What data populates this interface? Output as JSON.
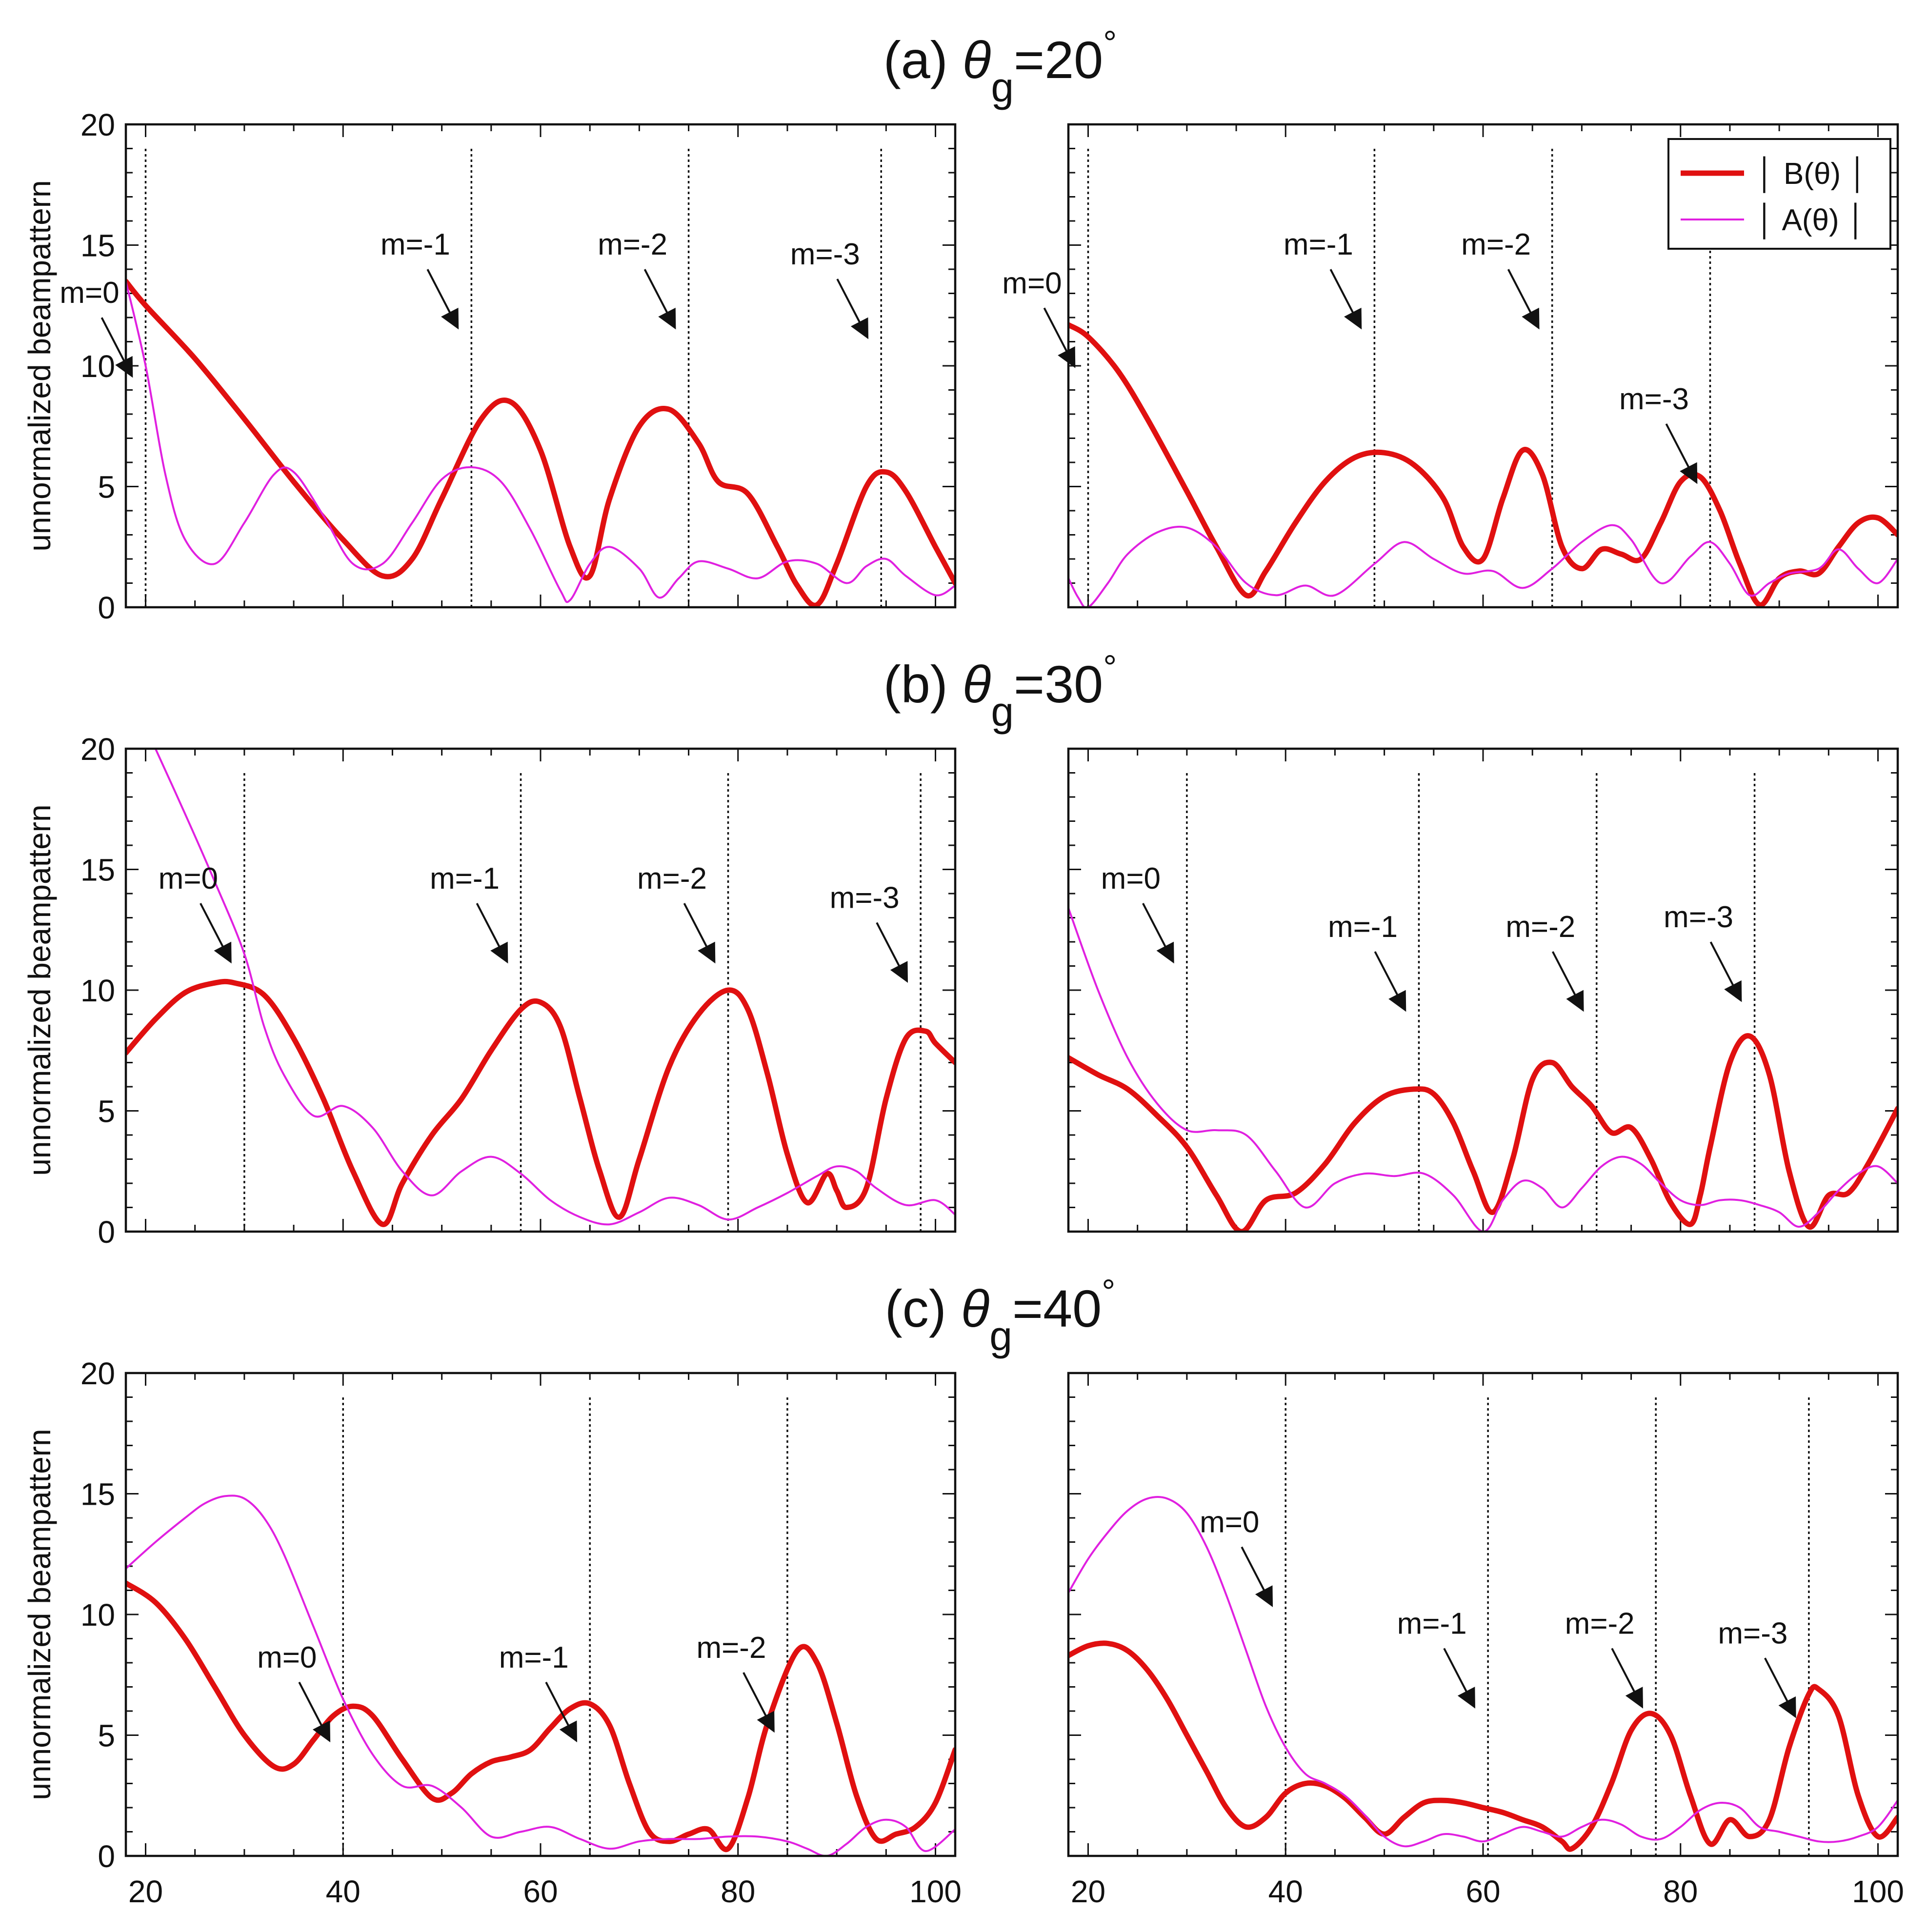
{
  "figure": {
    "ylabel": "unnormalized beampattern",
    "legend": {
      "B_label": "│ B(θ) │",
      "A_label": "│ A(θ) │",
      "B_color": "#e01010",
      "A_color": "#e020e0"
    },
    "x_tick_labels": [
      "20",
      "40",
      "60",
      "80",
      "100"
    ],
    "y_tick_labels": [
      "0",
      "5",
      "10",
      "15",
      "20"
    ]
  },
  "chart_data": [
    {
      "type": "line",
      "row": 0,
      "col": 0,
      "title_prefix": "(a) ",
      "title_theta": "θ",
      "title_sub": "g",
      "title_value": "=20",
      "title_degree": "°",
      "xlim": [
        18,
        102
      ],
      "ylim": [
        0,
        20
      ],
      "markers": [
        {
          "label": "m=0",
          "x": 20.0
        },
        {
          "label": "m=-1",
          "x": 53.0
        },
        {
          "label": "m=-2",
          "x": 75.0
        },
        {
          "label": "m=-3",
          "x": 94.5
        }
      ],
      "series": [
        {
          "name": "│ B(θ) │",
          "x": [
            18,
            20,
            25,
            30,
            35,
            40,
            44,
            47,
            50,
            54,
            57,
            60,
            63,
            65,
            67,
            70,
            73,
            76,
            78,
            81,
            84,
            86,
            88,
            90,
            93,
            95,
            97,
            100,
            102
          ],
          "y": [
            13.5,
            12.5,
            10.3,
            7.8,
            5.2,
            2.8,
            1.3,
            2.0,
            4.5,
            7.8,
            8.5,
            6.5,
            2.5,
            1.3,
            4.5,
            7.5,
            8.2,
            6.8,
            5.2,
            4.7,
            2.5,
            0.9,
            0.1,
            1.8,
            5.0,
            5.6,
            4.8,
            2.5,
            1.0
          ]
        },
        {
          "name": "│ A(θ) │",
          "x": [
            18,
            20,
            22,
            24,
            27,
            30,
            33,
            35,
            38,
            41,
            44,
            47,
            50,
            53,
            56,
            59,
            62,
            63,
            65,
            67,
            70,
            72,
            74,
            76,
            79,
            82,
            85,
            88,
            91,
            93,
            95,
            97,
            100,
            102
          ],
          "y": [
            13.5,
            10.0,
            5.5,
            2.8,
            1.8,
            3.5,
            5.5,
            5.6,
            3.8,
            1.8,
            1.8,
            3.5,
            5.3,
            5.8,
            5.2,
            3.2,
            0.7,
            0.3,
            1.8,
            2.5,
            1.6,
            0.4,
            1.2,
            1.9,
            1.6,
            1.2,
            1.9,
            1.8,
            1.0,
            1.7,
            2.0,
            1.3,
            0.5,
            0.9
          ]
        }
      ]
    },
    {
      "type": "line",
      "row": 0,
      "col": 1,
      "title_prefix": "",
      "title_theta": "",
      "title_sub": "",
      "title_value": "",
      "title_degree": "",
      "xlim": [
        18,
        102
      ],
      "ylim": [
        0,
        20
      ],
      "markers": [
        {
          "label": "m=0",
          "x": 20.0
        },
        {
          "label": "m=-1",
          "x": 49.0
        },
        {
          "label": "m=-2",
          "x": 67.0
        },
        {
          "label": "m=-3",
          "x": 83.0
        }
      ],
      "series": [
        {
          "name": "│ B(θ) │",
          "x": [
            18,
            20,
            23,
            26,
            30,
            33,
            36,
            38,
            41,
            44,
            47,
            50,
            53,
            56,
            58,
            60,
            62,
            64,
            66,
            68,
            70,
            72,
            74,
            76,
            78,
            80,
            82,
            84,
            86,
            88,
            90,
            92,
            94,
            96,
            98,
            100,
            102
          ],
          "y": [
            11.7,
            11.2,
            9.8,
            7.8,
            4.8,
            2.5,
            0.5,
            1.5,
            3.5,
            5.2,
            6.2,
            6.4,
            5.9,
            4.5,
            2.5,
            2.0,
            4.5,
            6.5,
            5.5,
            2.5,
            1.6,
            2.4,
            2.2,
            2.0,
            3.5,
            5.2,
            5.4,
            4.0,
            1.8,
            0.1,
            1.2,
            1.5,
            1.4,
            2.5,
            3.5,
            3.7,
            3.0
          ]
        },
        {
          "name": "│ A(θ) │",
          "x": [
            18,
            19,
            20,
            22,
            24,
            27,
            30,
            33,
            36,
            39,
            42,
            45,
            49,
            52,
            55,
            58,
            61,
            64,
            67,
            70,
            73,
            75,
            78,
            81,
            83,
            85,
            87,
            89,
            91,
            94,
            96,
            98,
            100,
            102
          ],
          "y": [
            1.2,
            0.4,
            0.0,
            1.0,
            2.2,
            3.1,
            3.3,
            2.5,
            1.0,
            0.5,
            0.9,
            0.5,
            1.8,
            2.7,
            2.0,
            1.4,
            1.5,
            0.8,
            1.6,
            2.7,
            3.4,
            2.8,
            1.0,
            2.1,
            2.7,
            1.8,
            0.5,
            1.0,
            1.4,
            1.6,
            2.4,
            1.6,
            1.0,
            2.0
          ]
        }
      ]
    },
    {
      "type": "line",
      "row": 1,
      "col": 0,
      "title_prefix": "(b) ",
      "title_theta": "θ",
      "title_sub": "g",
      "title_value": "=30",
      "title_degree": "°",
      "xlim": [
        18,
        102
      ],
      "ylim": [
        0,
        20
      ],
      "markers": [
        {
          "label": "m=0",
          "x": 30.0
        },
        {
          "label": "m=-1",
          "x": 58.0
        },
        {
          "label": "m=-2",
          "x": 79.0
        },
        {
          "label": "m=-3",
          "x": 98.5
        }
      ],
      "series": [
        {
          "name": "│ B(θ) │",
          "x": [
            18,
            21,
            24,
            27,
            29,
            32,
            35,
            38,
            41,
            44,
            46,
            49,
            52,
            55,
            58,
            60,
            62,
            64,
            66,
            68,
            70,
            73,
            76,
            79,
            81,
            83,
            85,
            87,
            89,
            90,
            91,
            93,
            95,
            97,
            99,
            100,
            102
          ],
          "y": [
            7.4,
            8.8,
            9.9,
            10.3,
            10.3,
            9.8,
            8.0,
            5.5,
            2.5,
            0.3,
            2.0,
            4.0,
            5.5,
            7.5,
            9.2,
            9.5,
            8.5,
            5.5,
            2.5,
            0.6,
            3.0,
            6.8,
            9.0,
            10.0,
            9.2,
            6.5,
            3.2,
            1.2,
            2.4,
            1.7,
            1.0,
            1.8,
            5.5,
            8.0,
            8.3,
            7.8,
            7.0
          ]
        },
        {
          "name": "│ A(θ) │",
          "x": [
            21,
            24,
            27,
            30,
            32,
            34,
            37,
            40,
            43,
            46,
            49,
            52,
            55,
            58,
            61,
            64,
            67,
            70,
            73,
            76,
            79,
            82,
            85,
            88,
            90,
            92,
            94,
            97,
            100,
            102
          ],
          "y": [
            20.0,
            17.3,
            14.5,
            11.5,
            8.5,
            6.5,
            4.8,
            5.2,
            4.3,
            2.5,
            1.5,
            2.5,
            3.1,
            2.4,
            1.3,
            0.6,
            0.3,
            0.8,
            1.4,
            1.1,
            0.5,
            1.0,
            1.6,
            2.3,
            2.7,
            2.5,
            1.8,
            1.1,
            1.3,
            0.7
          ]
        }
      ]
    },
    {
      "type": "line",
      "row": 1,
      "col": 1,
      "title_prefix": "",
      "title_theta": "",
      "title_sub": "",
      "title_value": "",
      "title_degree": "",
      "xlim": [
        18,
        102
      ],
      "ylim": [
        0,
        20
      ],
      "markers": [
        {
          "label": "m=0",
          "x": 30.0
        },
        {
          "label": "m=-1",
          "x": 53.5
        },
        {
          "label": "m=-2",
          "x": 71.5
        },
        {
          "label": "m=-3",
          "x": 87.5
        }
      ],
      "series": [
        {
          "name": "│ B(θ) │",
          "x": [
            18,
            21,
            24,
            27,
            30,
            33,
            35.5,
            38,
            41,
            44,
            47,
            50,
            53,
            55,
            57,
            59,
            61,
            63,
            65,
            67,
            69,
            71,
            73,
            75,
            77,
            79,
            81,
            82,
            83,
            85,
            87,
            89,
            91,
            93,
            95,
            97,
            99,
            102
          ],
          "y": [
            7.2,
            6.5,
            5.9,
            4.8,
            3.5,
            1.5,
            0.0,
            1.3,
            1.6,
            2.8,
            4.5,
            5.6,
            5.9,
            5.7,
            4.5,
            2.5,
            0.8,
            3.0,
            6.3,
            7.0,
            6.0,
            5.2,
            4.1,
            4.3,
            3.0,
            1.2,
            0.3,
            1.5,
            3.5,
            7.0,
            8.1,
            6.5,
            2.5,
            0.2,
            1.5,
            1.6,
            2.8,
            5.1
          ]
        },
        {
          "name": "│ A(θ) │",
          "x": [
            18,
            21,
            24,
            27,
            30,
            33,
            36,
            39,
            42,
            45,
            48,
            51,
            54,
            57,
            60,
            62,
            64,
            66,
            68,
            70,
            72,
            74,
            76,
            78,
            80,
            82,
            84,
            86,
            88,
            90,
            92,
            94,
            96,
            98,
            100,
            102
          ],
          "y": [
            13.4,
            10.0,
            7.2,
            5.3,
            4.2,
            4.2,
            4.0,
            2.5,
            1.0,
            2.0,
            2.4,
            2.3,
            2.4,
            1.5,
            0.0,
            1.3,
            2.1,
            1.8,
            1.0,
            1.8,
            2.7,
            3.1,
            2.8,
            2.0,
            1.3,
            1.1,
            1.3,
            1.3,
            1.1,
            0.8,
            0.2,
            0.8,
            1.7,
            2.4,
            2.7,
            2.0
          ]
        }
      ]
    },
    {
      "type": "line",
      "row": 2,
      "col": 0,
      "title_prefix": "(c) ",
      "title_theta": "θ",
      "title_sub": "g",
      "title_value": "=40",
      "title_degree": "°",
      "xlim": [
        18,
        102
      ],
      "ylim": [
        0,
        20
      ],
      "markers": [
        {
          "label": "m=0",
          "x": 40.0
        },
        {
          "label": "m=-1",
          "x": 65.0
        },
        {
          "label": "m=-2",
          "x": 85.0
        }
      ],
      "series": [
        {
          "name": "│ B(θ) │",
          "x": [
            18,
            21,
            24,
            27,
            30,
            33,
            35,
            37,
            39,
            41,
            43,
            46,
            49,
            51,
            53,
            55,
            57,
            59,
            61,
            63,
            65,
            67,
            69,
            71,
            73,
            75,
            77,
            79,
            81,
            83,
            86,
            88,
            90,
            92,
            94,
            96,
            98,
            100,
            102
          ],
          "y": [
            11.3,
            10.5,
            9.0,
            7.0,
            5.0,
            3.7,
            3.8,
            4.8,
            5.8,
            6.2,
            5.8,
            4.0,
            2.4,
            2.6,
            3.4,
            3.9,
            4.1,
            4.4,
            5.3,
            6.1,
            6.3,
            5.4,
            3.0,
            1.0,
            0.6,
            0.9,
            1.1,
            0.3,
            2.4,
            5.5,
            8.5,
            8.0,
            5.5,
            2.5,
            0.7,
            0.9,
            1.2,
            2.2,
            4.4
          ]
        },
        {
          "name": "│ A(θ) │",
          "x": [
            18,
            21,
            24,
            26,
            28,
            30,
            32,
            34,
            37,
            40,
            43,
            46,
            49,
            52,
            55,
            58,
            61,
            64,
            67,
            70,
            73,
            76,
            79,
            82,
            85,
            87,
            89,
            91,
            93,
            95,
            97,
            99,
            102
          ],
          "y": [
            11.9,
            13.0,
            14.0,
            14.6,
            14.9,
            14.8,
            14.0,
            12.5,
            9.5,
            6.5,
            4.2,
            2.9,
            2.9,
            2.0,
            0.8,
            1.0,
            1.2,
            0.7,
            0.3,
            0.6,
            0.7,
            0.7,
            0.8,
            0.8,
            0.6,
            0.3,
            0.0,
            0.5,
            1.2,
            1.5,
            1.2,
            0.2,
            1.1
          ]
        }
      ]
    },
    {
      "type": "line",
      "row": 2,
      "col": 1,
      "title_prefix": "",
      "title_theta": "",
      "title_sub": "",
      "title_value": "",
      "title_degree": "",
      "xlim": [
        18,
        102
      ],
      "ylim": [
        0,
        20
      ],
      "markers": [
        {
          "label": "m=0",
          "x": 40.0
        },
        {
          "label": "m=-1",
          "x": 60.5
        },
        {
          "label": "m=-2",
          "x": 77.5
        },
        {
          "label": "m=-3",
          "x": 93.0
        }
      ],
      "series": [
        {
          "name": "│ B(θ) │",
          "x": [
            18,
            20,
            22,
            24,
            26,
            28,
            30,
            32,
            34,
            36,
            38,
            40,
            42,
            44,
            46,
            48,
            50,
            52,
            54,
            56,
            58,
            60,
            62,
            64,
            66,
            68,
            69,
            71,
            73,
            75,
            77,
            79,
            81,
            83,
            85,
            87,
            89,
            91,
            93,
            94,
            96,
            98,
            100,
            102
          ],
          "y": [
            8.3,
            8.7,
            8.8,
            8.5,
            7.7,
            6.5,
            5.0,
            3.5,
            2.0,
            1.2,
            1.6,
            2.6,
            3.0,
            2.9,
            2.4,
            1.6,
            0.9,
            1.6,
            2.2,
            2.3,
            2.2,
            2.0,
            1.8,
            1.5,
            1.2,
            0.6,
            0.3,
            1.2,
            3.0,
            5.2,
            5.9,
            5.0,
            2.5,
            0.5,
            1.5,
            0.8,
            1.5,
            4.5,
            6.7,
            6.9,
            5.8,
            2.5,
            0.8,
            1.6
          ]
        },
        {
          "name": "│ A(θ) │",
          "x": [
            18,
            20,
            22,
            24,
            26,
            28,
            30,
            32,
            34,
            36,
            38,
            40,
            42,
            44,
            46,
            48,
            50,
            52,
            54,
            56,
            58,
            60,
            62,
            64,
            66,
            68,
            70,
            72,
            74,
            76,
            78,
            80,
            82,
            84,
            86,
            88,
            90,
            92,
            94,
            96,
            98,
            100,
            102
          ],
          "y": [
            10.9,
            12.3,
            13.4,
            14.3,
            14.8,
            14.8,
            14.2,
            12.8,
            10.8,
            8.5,
            6.2,
            4.5,
            3.4,
            3.0,
            2.5,
            1.7,
            0.8,
            0.4,
            0.6,
            0.9,
            0.8,
            0.6,
            0.9,
            1.2,
            1.0,
            0.8,
            1.2,
            1.5,
            1.3,
            0.8,
            0.7,
            1.2,
            1.9,
            2.2,
            2.0,
            1.2,
            1.0,
            0.8,
            0.6,
            0.6,
            0.8,
            1.2,
            2.3
          ]
        }
      ]
    }
  ]
}
